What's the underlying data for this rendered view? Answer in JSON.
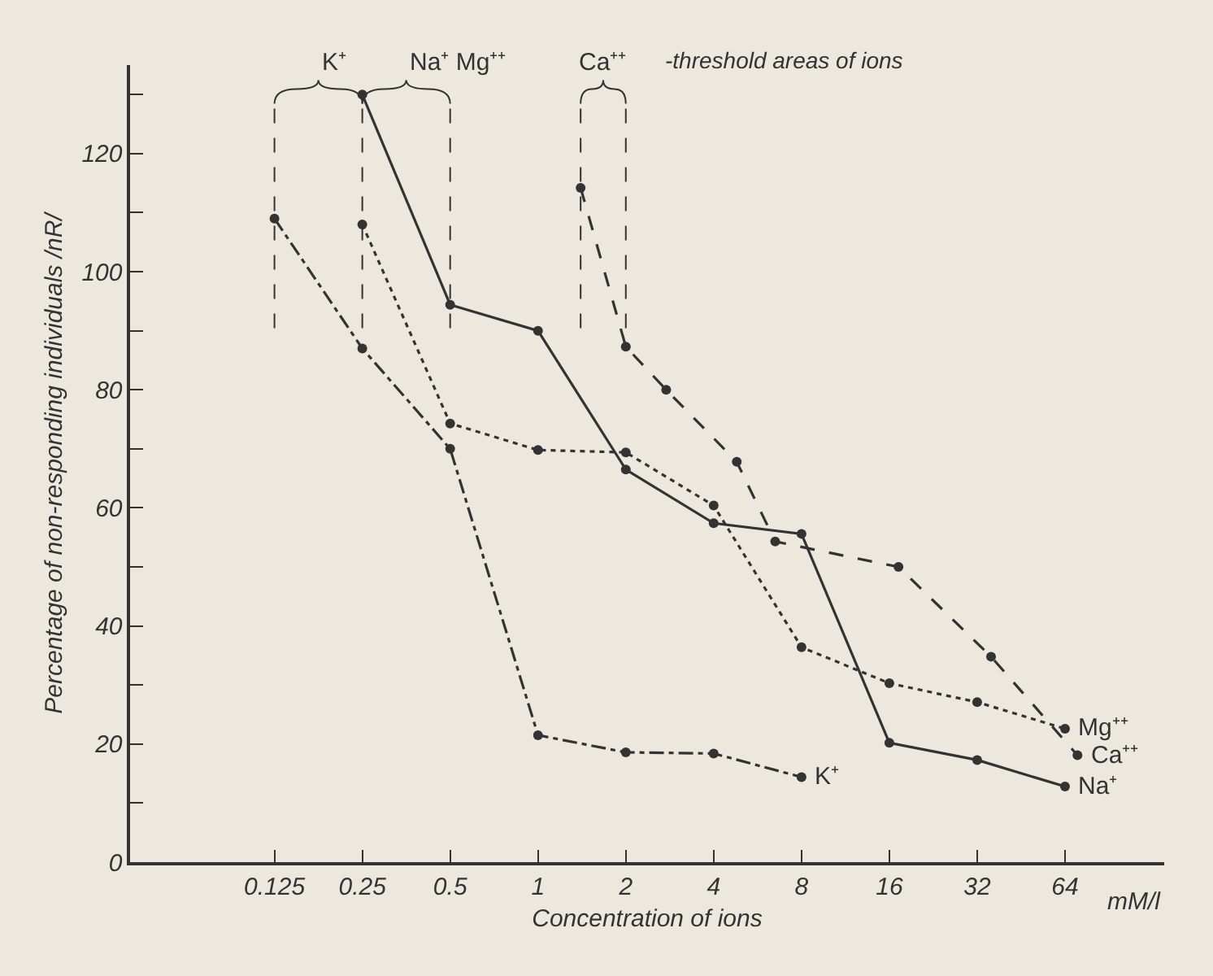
{
  "chart_data": {
    "type": "line",
    "xlabel": "Concentration of ions",
    "ylabel": "Percentage of non-responding individuals /nR/",
    "series": [
      {
        "name": "K⁺",
        "color": "#333333",
        "line_style": "dashdot",
        "x": [
          0.125,
          0.25,
          0.5,
          1,
          2,
          4,
          8
        ],
        "values": [
          109,
          87,
          70,
          21.5,
          18.6,
          18.4,
          14.4
        ]
      },
      {
        "name": "Na⁺",
        "color": "#333333",
        "line_style": "solid",
        "x": [
          0.25,
          0.5,
          1,
          2,
          4,
          8,
          16,
          32,
          64
        ],
        "values": [
          130,
          94.4,
          90,
          66.5,
          57.4,
          55.6,
          20.2,
          17.3,
          12.8
        ]
      },
      {
        "name": "Mg⁺⁺",
        "color": "#333333",
        "line_style": "dotted",
        "x": [
          0.25,
          0.5,
          1,
          2,
          4,
          8,
          16,
          32,
          64
        ],
        "values": [
          108,
          74.3,
          69.8,
          69.4,
          60.4,
          36.4,
          30.3,
          27.1,
          22.6
        ]
      },
      {
        "name": "Ca⁺⁺",
        "color": "#333333",
        "line_style": "dashed",
        "x": [
          1.4,
          2,
          2.75,
          4.8,
          6.5,
          17.2,
          35.7,
          70.6
        ],
        "values": [
          114.2,
          87.3,
          80,
          67.8,
          54.3,
          50,
          34.8,
          18.1
        ]
      }
    ],
    "ref_lines": [
      {
        "axis": "x",
        "value": 0.125,
        "label": "K⁺",
        "color": "#333333",
        "line_style": "dashed"
      },
      {
        "axis": "x",
        "value": 0.25,
        "label": "Na⁺ Mg⁺⁺",
        "color": "#333333",
        "line_style": "dashed"
      },
      {
        "axis": "x",
        "value": 0.5,
        "color": "#333333",
        "line_style": "dashed"
      },
      {
        "axis": "x",
        "value": 1.4,
        "label": "Ca⁺⁺",
        "color": "#333333",
        "line_style": "dashed"
      },
      {
        "axis": "x",
        "value": 2,
        "color": "#333333",
        "line_style": "dashed"
      }
    ],
    "annotations": [
      "-threshold areas of ions",
      "mM/l"
    ],
    "xlim": [
      0.04,
      140
    ],
    "xticks": [
      0.125,
      0.25,
      0.5,
      1,
      2,
      4,
      8,
      16,
      32,
      64
    ],
    "ylim": [
      0,
      135
    ],
    "yticks": [
      0,
      {
        "value": 10,
        "label": null
      },
      20,
      {
        "value": 30,
        "label": null
      },
      40,
      {
        "value": 50,
        "label": null
      },
      60,
      {
        "value": 70,
        "label": null
      },
      80,
      {
        "value": 90,
        "label": null
      },
      100,
      {
        "value": 110,
        "label": null
      },
      120,
      {
        "value": 130,
        "label": null
      }
    ],
    "log": "x",
    "marker": "circle",
    "grid": false,
    "legend": false
  }
}
